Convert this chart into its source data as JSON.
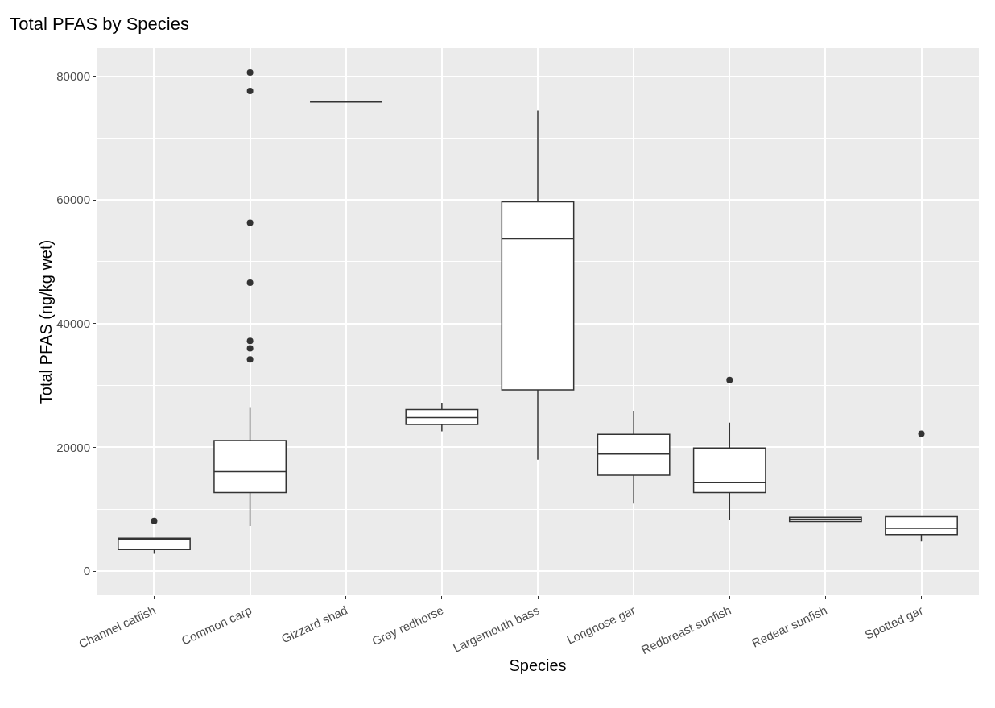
{
  "chart_data": {
    "type": "box",
    "title": "Total PFAS by Species",
    "xlabel": "Species",
    "ylabel": "Total PFAS (ng/kg wet)",
    "categories": [
      "Channel catfish",
      "Common carp",
      "Gizzard shad",
      "Grey redhorse",
      "Largemouth bass",
      "Longnose gar",
      "Redbreast sunfish",
      "Redear sunfish",
      "Spotted gar"
    ],
    "boxes": [
      {
        "low": 2800,
        "q1": 3500,
        "median": 5100,
        "q3": 5300,
        "high": 5300,
        "outliers": [
          8100
        ]
      },
      {
        "low": 7300,
        "q1": 12700,
        "median": 16100,
        "q3": 21100,
        "high": 26500,
        "outliers": [
          80600,
          77600,
          56300,
          46600,
          37200,
          36000,
          34200
        ]
      },
      {
        "low": 75800,
        "q1": 75800,
        "median": 75800,
        "q3": 75800,
        "high": 75800
      },
      {
        "low": 22600,
        "q1": 23700,
        "median": 24800,
        "q3": 26100,
        "high": 27200
      },
      {
        "low": 18000,
        "q1": 29300,
        "median": 53700,
        "q3": 59700,
        "high": 74400
      },
      {
        "low": 10900,
        "q1": 15500,
        "median": 18900,
        "q3": 22100,
        "high": 25900
      },
      {
        "low": 8200,
        "q1": 12700,
        "median": 14300,
        "q3": 19900,
        "high": 24000,
        "outliers": [
          30900
        ]
      },
      {
        "low": 8000,
        "q1": 8000,
        "median": 8400,
        "q3": 8700,
        "high": 8700
      },
      {
        "low": 4800,
        "q1": 5900,
        "median": 6900,
        "q3": 8800,
        "high": 8800,
        "outliers": [
          22200
        ]
      }
    ],
    "ylim": [
      -3900,
      84500
    ],
    "yticks": [
      0,
      20000,
      40000,
      60000,
      80000
    ],
    "grid": true,
    "marker": "circle"
  }
}
